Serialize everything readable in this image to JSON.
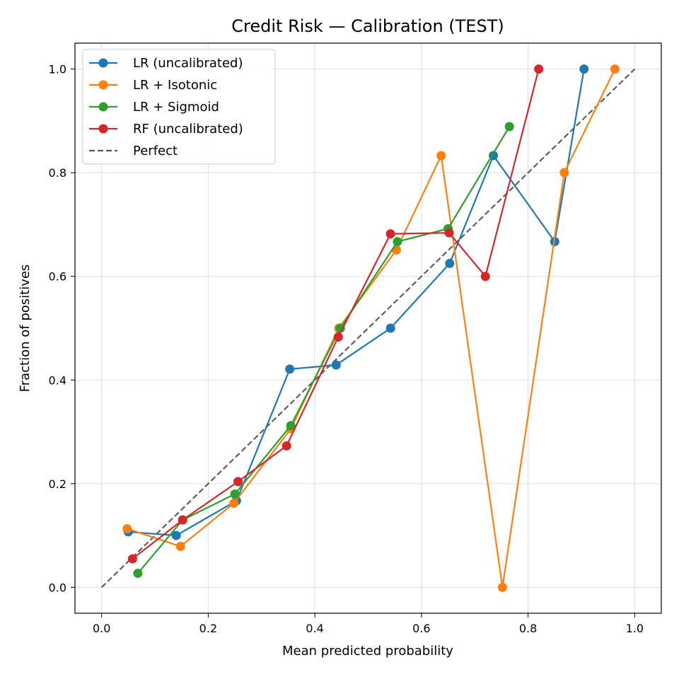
{
  "chart_data": {
    "type": "line",
    "title": "Credit Risk — Calibration (TEST)",
    "xlabel": "Mean predicted probability",
    "ylabel": "Fraction of positives",
    "xlim": [
      -0.05,
      1.05
    ],
    "ylim": [
      -0.05,
      1.05
    ],
    "xticks": [
      "0.0",
      "0.2",
      "0.4",
      "0.6",
      "0.8",
      "1.0"
    ],
    "yticks": [
      "0.0",
      "0.2",
      "0.4",
      "0.6",
      "0.8",
      "1.0"
    ],
    "grid": true,
    "legend_position": "top-left",
    "series": [
      {
        "name": "LR (uncalibrated)",
        "color": "#1f77b4",
        "style": "line-marker",
        "x": [
          0.05,
          0.14,
          0.253,
          0.353,
          0.44,
          0.542,
          0.653,
          0.735,
          0.85,
          0.905
        ],
        "y": [
          0.107,
          0.1,
          0.167,
          0.421,
          0.429,
          0.5,
          0.625,
          0.833,
          0.667,
          1.0
        ]
      },
      {
        "name": "LR + Isotonic",
        "color": "#ff7f0e",
        "style": "line-marker",
        "x": [
          0.048,
          0.148,
          0.248,
          0.355,
          0.445,
          0.553,
          0.637,
          0.752,
          0.868,
          0.963
        ],
        "y": [
          0.113,
          0.079,
          0.162,
          0.306,
          0.5,
          0.651,
          0.833,
          0.0,
          0.8,
          1.0
        ]
      },
      {
        "name": "LR + Sigmoid",
        "color": "#2ca02c",
        "style": "line-marker",
        "x": [
          0.068,
          0.152,
          0.25,
          0.355,
          0.448,
          0.555,
          0.65,
          0.765
        ],
        "y": [
          0.027,
          0.13,
          0.18,
          0.312,
          0.5,
          0.667,
          0.692,
          0.889
        ]
      },
      {
        "name": "RF (uncalibrated)",
        "color": "#d62728",
        "style": "line-marker",
        "x": [
          0.058,
          0.152,
          0.256,
          0.347,
          0.444,
          0.542,
          0.652,
          0.72,
          0.82
        ],
        "y": [
          0.055,
          0.13,
          0.204,
          0.273,
          0.483,
          0.682,
          0.684,
          0.6,
          1.0
        ]
      },
      {
        "name": "Perfect",
        "color": "#555555",
        "style": "dashed",
        "x": [
          0.0,
          1.0
        ],
        "y": [
          0.0,
          1.0
        ]
      }
    ]
  }
}
